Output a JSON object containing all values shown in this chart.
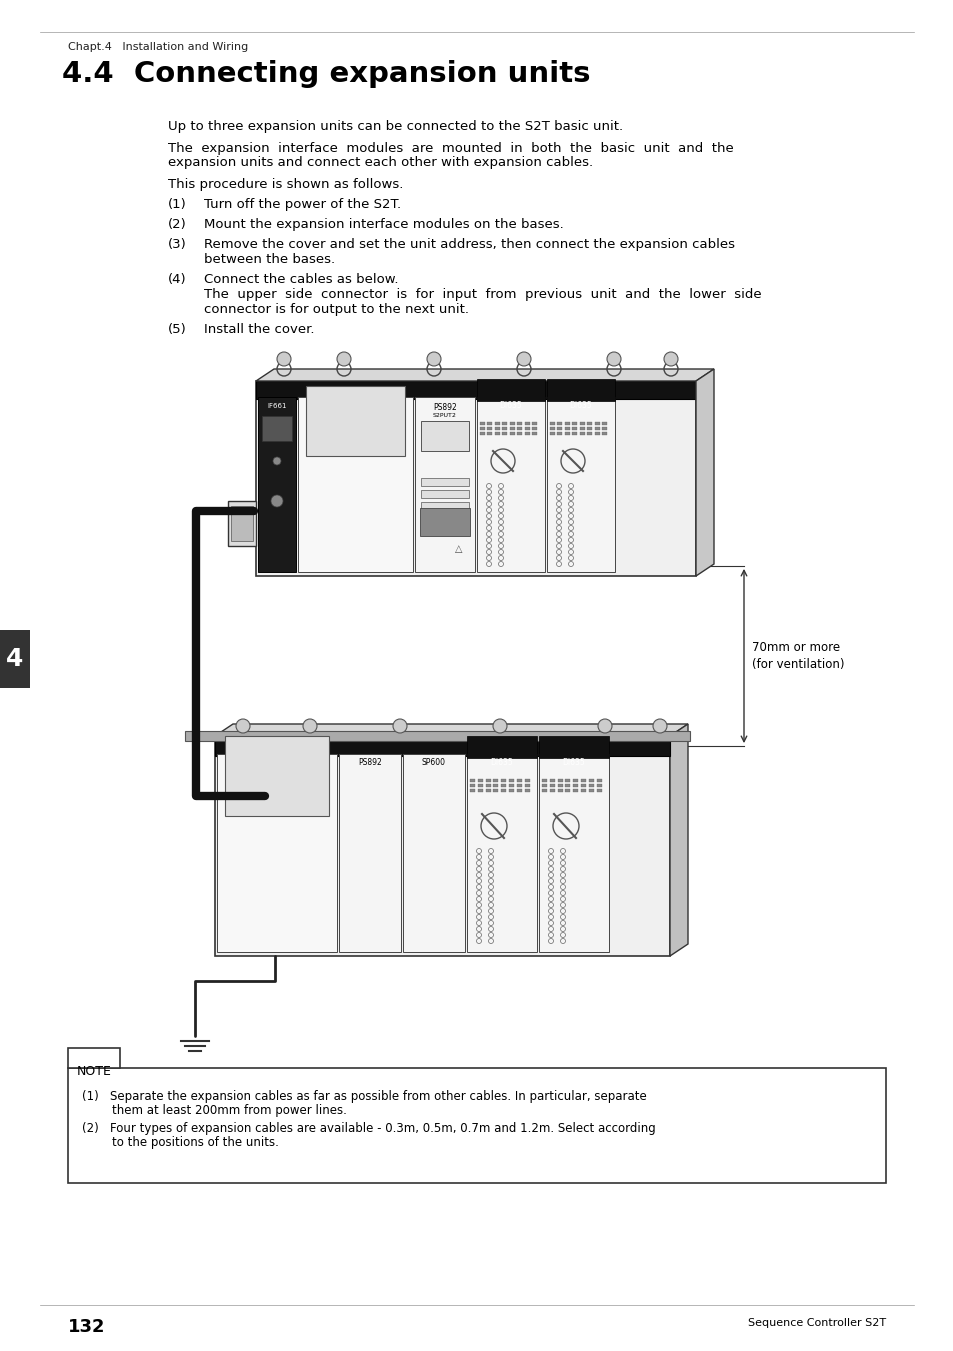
{
  "page_bg": "#ffffff",
  "chapter_label": "Chapt.4   Installation and Wiring",
  "section_title": "4.4  Connecting expansion units",
  "para1": "Up to three expansion units can be connected to the S2T basic unit.",
  "para2a": "The  expansion  interface  modules  are  mounted  in  both  the  basic  unit  and  the",
  "para2b": "expansion units and connect each other with expansion cables.",
  "para3": "This procedure is shown as follows.",
  "steps": [
    {
      "num": "(1)",
      "lines": [
        "Turn off the power of the S2T."
      ]
    },
    {
      "num": "(2)",
      "lines": [
        "Mount the expansion interface modules on the bases."
      ]
    },
    {
      "num": "(3)",
      "lines": [
        "Remove the cover and set the unit address, then connect the expansion cables",
        "between the bases."
      ]
    },
    {
      "num": "(4)",
      "lines": [
        "Connect the cables as below.",
        "The  upper  side  connector  is  for  input  from  previous  unit  and  the  lower  side",
        "connector is for output to the next unit."
      ]
    },
    {
      "num": "(5)",
      "lines": [
        "Install the cover."
      ]
    }
  ],
  "note_label": "NOTE",
  "note_line1a": "(1)   Separate the expansion cables as far as possible from other cables. In particular, separate",
  "note_line1b": "        them at least 200mm from power lines.",
  "note_line2a": "(2)   Four types of expansion cables are available - 0.3m, 0.5m, 0.7m and 1.2m. Select according",
  "note_line2b": "        to the positions of the units.",
  "page_num": "132",
  "footer_right": "Sequence Controller S2T",
  "section_tab": "4",
  "vent_label1": "70mm or more",
  "vent_label2": "(for ventilation)"
}
